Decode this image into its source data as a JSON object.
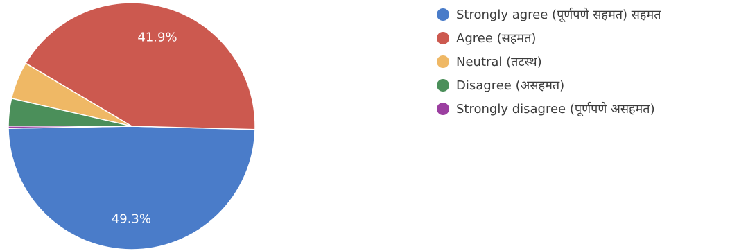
{
  "chart_data": {
    "type": "pie",
    "title": "",
    "categories": [
      "Strongly agree (पूर्णपणे सहमत) सहमत",
      "Agree (सहमत)",
      "Neutral (तटस्थ)",
      "Disagree (असहमत)",
      "Strongly disagree (पूर्णपणे असहमत)"
    ],
    "values": [
      49.3,
      41.9,
      4.9,
      3.6,
      0.3
    ],
    "data_labels": [
      "49.3%",
      "41.9%",
      "",
      "",
      ""
    ],
    "colors": [
      "#4a7cc9",
      "#cc594f",
      "#efb865",
      "#4b8f5a",
      "#9b3fa0"
    ],
    "start_angle_deg": 181,
    "direction": "counterclockwise",
    "legend_position": "right"
  },
  "legend": {
    "items": [
      {
        "label": "Strongly agree (पूर्णपणे सहमत) सहमत",
        "color": "#4a7cc9"
      },
      {
        "label": "Agree (सहमत)",
        "color": "#cc594f"
      },
      {
        "label": "Neutral (तटस्थ)",
        "color": "#efb865"
      },
      {
        "label": "Disagree (असहमत)",
        "color": "#4b8f5a"
      },
      {
        "label": "Strongly disagree (पूर्णपणे असहमत)",
        "color": "#9b3fa0"
      }
    ]
  }
}
